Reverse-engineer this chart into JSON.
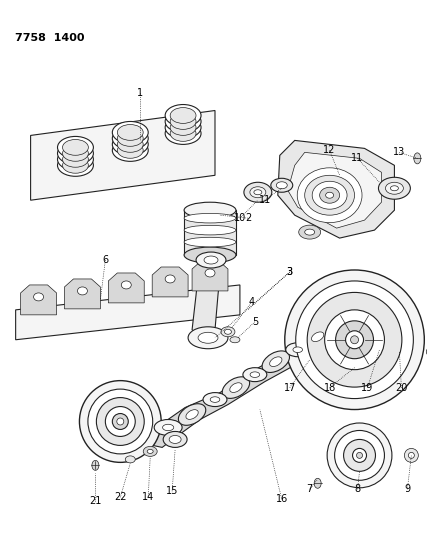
{
  "title": "7758 1400",
  "background_color": "#ffffff",
  "figsize": [
    4.28,
    5.33
  ],
  "dpi": 100,
  "lw_thin": 0.5,
  "lw_med": 0.8,
  "lw_thick": 1.0,
  "fc_light": "#f5f5f5",
  "fc_mid": "#e8e8e8",
  "fc_dark": "#d8d8d8",
  "ec": "#222222"
}
